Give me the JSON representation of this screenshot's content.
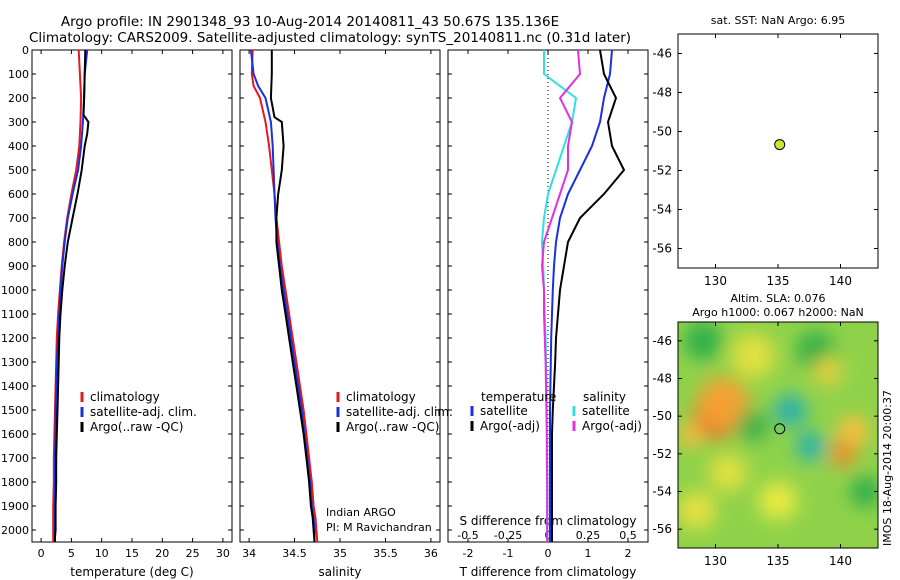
{
  "header": {
    "line1": "Argo profile: IN 2901348_93 10-Aug-2014 20140811_43 50.67S 135.136E",
    "line2": "Climatology: CARS2009. Satellite-adjusted climatology: synTS_20140811.nc (0.31d later)"
  },
  "colors": {
    "climatology": "#e41a1c",
    "satellite": "#1a2fe0",
    "argo": "#000000",
    "s_satellite": "#30e0e0",
    "s_argo": "#e030e0",
    "marker": "#c8e632"
  },
  "chart_data": [
    {
      "type": "line",
      "panel": "temperature",
      "xlabel": "temperature (deg C)",
      "ylabel": "",
      "xlim": [
        -1.5,
        31.5
      ],
      "ylim": [
        2050,
        0
      ],
      "xticks": [
        "0",
        "5",
        "10",
        "15",
        "20",
        "25",
        "30"
      ],
      "yticks": [
        "0",
        "100",
        "200",
        "300",
        "400",
        "500",
        "600",
        "700",
        "800",
        "900",
        "1000",
        "1100",
        "1200",
        "1300",
        "1400",
        "1500",
        "1600",
        "1700",
        "1800",
        "1900",
        "2000"
      ],
      "legend": [
        "climatology",
        "satellite-adj. clim.",
        "Argo(..raw -QC)"
      ],
      "series": [
        {
          "name": "climatology",
          "color": "#e41a1c",
          "x": [
            6.2,
            6.4,
            6.6,
            6.5,
            6.3,
            5.8,
            5.0,
            4.3,
            3.8,
            3.4,
            3.1,
            2.8,
            2.6,
            2.5,
            2.4,
            2.3,
            2.2,
            2.1,
            2.1,
            2.0,
            2.0
          ],
          "y": [
            0,
            100,
            200,
            300,
            400,
            500,
            600,
            700,
            800,
            900,
            1000,
            1100,
            1200,
            1300,
            1400,
            1500,
            1600,
            1700,
            1800,
            1900,
            2050
          ]
        },
        {
          "name": "satellite-adj. clim.",
          "color": "#1a2fe0",
          "x": [
            7.6,
            7.2,
            7.1,
            6.9,
            6.6,
            6.1,
            5.2,
            4.4,
            3.9,
            3.5,
            3.2,
            3.0,
            2.8,
            2.6,
            2.5,
            2.4,
            2.4,
            2.3,
            2.3,
            2.3,
            2.3
          ],
          "y": [
            0,
            100,
            200,
            300,
            400,
            500,
            600,
            700,
            800,
            900,
            1000,
            1100,
            1200,
            1300,
            1400,
            1500,
            1600,
            1700,
            1800,
            1900,
            2050
          ]
        },
        {
          "name": "Argo(..raw -QC)",
          "color": "#000000",
          "x": [
            7.3,
            7.2,
            7.1,
            7.0,
            7.8,
            7.6,
            7.2,
            6.7,
            6.0,
            5.2,
            4.4,
            3.9,
            3.5,
            3.2,
            3.0,
            2.9,
            2.8,
            2.7,
            2.6,
            2.5,
            2.5,
            2.4,
            2.4,
            2.3,
            2.3
          ],
          "y": [
            0,
            100,
            200,
            270,
            300,
            350,
            400,
            500,
            600,
            700,
            800,
            900,
            1000,
            1100,
            1200,
            1300,
            1400,
            1500,
            1600,
            1700,
            1800,
            1900,
            2000,
            2030,
            2050
          ]
        }
      ]
    },
    {
      "type": "line",
      "panel": "salinity",
      "xlabel": "salinity",
      "annotation": [
        "Indian ARGO",
        "PI: M Ravichandran"
      ],
      "xlim": [
        33.9,
        36.1
      ],
      "ylim": [
        2050,
        0
      ],
      "xticks": [
        "34",
        "34.5",
        "35",
        "35.5",
        "36"
      ],
      "legend": [
        "climatology",
        "satellite-adj. clim.",
        "Argo(..raw -QC)"
      ],
      "series": [
        {
          "name": "climatology",
          "color": "#e41a1c",
          "x": [
            34.04,
            34.03,
            34.05,
            34.12,
            34.18,
            34.22,
            34.25,
            34.28,
            34.3,
            34.33,
            34.36,
            34.4,
            34.44,
            34.48,
            34.52,
            34.56,
            34.6,
            34.63,
            34.66,
            34.69,
            34.71,
            34.73,
            34.74,
            34.75
          ],
          "y": [
            0,
            100,
            150,
            200,
            300,
            400,
            500,
            600,
            700,
            800,
            900,
            1000,
            1100,
            1200,
            1300,
            1400,
            1500,
            1600,
            1700,
            1800,
            1900,
            1950,
            2000,
            2050
          ]
        },
        {
          "name": "satellite-adj. clim.",
          "color": "#1a2fe0",
          "x": [
            34.02,
            34.05,
            34.1,
            34.18,
            34.24,
            34.26,
            34.27,
            34.28,
            34.29,
            34.31,
            34.34,
            34.38,
            34.42,
            34.46,
            34.5,
            34.54,
            34.58,
            34.61,
            34.64,
            34.67,
            34.69,
            34.71,
            34.72,
            34.72
          ],
          "y": [
            0,
            100,
            150,
            200,
            300,
            400,
            500,
            600,
            700,
            800,
            900,
            1000,
            1100,
            1200,
            1300,
            1400,
            1500,
            1600,
            1700,
            1800,
            1900,
            1950,
            2000,
            2050
          ]
        },
        {
          "name": "Argo(..raw -QC)",
          "color": "#000000",
          "x": [
            34.25,
            34.25,
            34.24,
            34.28,
            34.36,
            34.38,
            34.36,
            34.32,
            34.3,
            34.3,
            34.33,
            34.36,
            34.4,
            34.44,
            34.48,
            34.52,
            34.56,
            34.6,
            34.63,
            34.66,
            34.68,
            34.7,
            34.71,
            34.72
          ],
          "y": [
            0,
            100,
            200,
            280,
            300,
            400,
            500,
            600,
            700,
            800,
            900,
            1000,
            1100,
            1200,
            1300,
            1400,
            1500,
            1600,
            1700,
            1800,
            1900,
            1950,
            2000,
            2050
          ]
        }
      ]
    },
    {
      "type": "line",
      "panel": "difference",
      "xlabel": "T difference from climatology",
      "xlabel_top": "S difference from climatology",
      "xlim": [
        -2.5,
        2.5
      ],
      "ylim": [
        2050,
        0
      ],
      "xticks": [
        "-2",
        "-1",
        "0",
        "1",
        "2"
      ],
      "xticks_top": [
        "-0.5",
        "-0.25",
        "0",
        "0.25",
        "0.5"
      ],
      "legend_left_title": "temperature",
      "legend_right_title": "salinity",
      "legend": [
        "satellite",
        "Argo(-adj)",
        "satellite",
        "Argo(-adj)"
      ],
      "series": [
        {
          "name": "satellite",
          "color": "#1a2fe0",
          "x": [
            1.6,
            1.55,
            1.4,
            1.3,
            1.1,
            0.8,
            0.5,
            0.3,
            0.2,
            0.15,
            0.12,
            0.1,
            0.08,
            0.07,
            0.06,
            0.05,
            0.05,
            0.05,
            0.05,
            0.05,
            0.05
          ],
          "y": [
            0,
            100,
            200,
            300,
            400,
            500,
            600,
            700,
            800,
            900,
            1000,
            1100,
            1200,
            1300,
            1400,
            1500,
            1600,
            1700,
            1800,
            1900,
            2050
          ]
        },
        {
          "name": "Argo(-adj)",
          "color": "#000000",
          "x": [
            1.3,
            1.4,
            1.7,
            1.5,
            1.6,
            1.9,
            1.4,
            0.8,
            0.5,
            0.4,
            0.3,
            0.25,
            0.2,
            0.18,
            0.15,
            0.12,
            0.1,
            0.1,
            0.1,
            0.1,
            0.1
          ],
          "y": [
            0,
            100,
            200,
            300,
            400,
            500,
            600,
            700,
            800,
            900,
            1000,
            1100,
            1200,
            1300,
            1400,
            1500,
            1600,
            1700,
            1800,
            1900,
            2050
          ]
        },
        {
          "name": "satellite",
          "color": "#30e0e0",
          "x": [
            -0.1,
            -0.1,
            0.7,
            0.6,
            0.4,
            0.2,
            0.0,
            -0.1,
            -0.15,
            -0.12,
            -0.1,
            -0.08,
            -0.06,
            -0.05,
            -0.04,
            -0.03,
            -0.03,
            -0.02,
            -0.02,
            -0.02,
            -0.02
          ],
          "y": [
            0,
            100,
            200,
            300,
            400,
            500,
            600,
            700,
            800,
            900,
            1000,
            1100,
            1200,
            1300,
            1400,
            1500,
            1600,
            1700,
            1800,
            1900,
            2050
          ]
        },
        {
          "name": "Argo(-adj)",
          "color": "#e030e0",
          "x": [
            0.75,
            0.8,
            0.3,
            0.6,
            0.5,
            0.5,
            0.3,
            0.1,
            -0.1,
            -0.15,
            -0.1,
            -0.1,
            -0.08,
            -0.06,
            -0.05,
            -0.04,
            -0.03,
            -0.03,
            -0.02,
            -0.02,
            -0.02
          ],
          "y": [
            0,
            100,
            200,
            300,
            400,
            500,
            600,
            700,
            800,
            900,
            1000,
            1100,
            1200,
            1300,
            1400,
            1500,
            1600,
            1700,
            1800,
            1900,
            2050
          ]
        }
      ]
    },
    {
      "type": "scatter",
      "panel": "sst-map",
      "title": "sat. SST: NaN Argo: 6.95",
      "xlim": [
        127,
        143
      ],
      "ylim": [
        -57,
        -45
      ],
      "xticks": [
        "130",
        "135",
        "140"
      ],
      "yticks": [
        "-46",
        "-48",
        "-50",
        "-52",
        "-54",
        "-56"
      ],
      "points": [
        {
          "x": 135.136,
          "y": -50.67
        }
      ]
    },
    {
      "type": "heatmap",
      "panel": "sla-map",
      "title_line1": "Altim. SLA: 0.076",
      "title_line2": "Argo h1000: 0.067 h2000: NaN",
      "side_label": "IMOS 18-Aug-2014 20:00:37",
      "xlim": [
        127,
        143
      ],
      "ylim": [
        -57,
        -45
      ],
      "xticks": [
        "130",
        "135",
        "140"
      ],
      "yticks": [
        "-46",
        "-48",
        "-50",
        "-52",
        "-54",
        "-56"
      ],
      "points": [
        {
          "x": 135.136,
          "y": -50.67
        }
      ]
    }
  ]
}
